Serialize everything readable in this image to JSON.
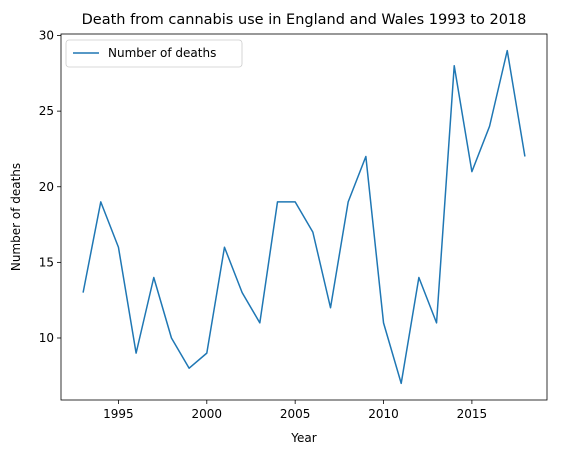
{
  "chart_data": {
    "type": "line",
    "title": "Death from cannabis use in England and Wales 1993 to 2018",
    "xlabel": "Year",
    "ylabel": "Number of deaths",
    "x": [
      1993,
      1994,
      1995,
      1996,
      1997,
      1998,
      1999,
      2000,
      2001,
      2002,
      2003,
      2004,
      2005,
      2006,
      2007,
      2008,
      2009,
      2010,
      2011,
      2012,
      2013,
      2014,
      2015,
      2016,
      2017,
      2018
    ],
    "series": [
      {
        "name": "Number of deaths",
        "color": "#1f77b4",
        "values": [
          13,
          19,
          16,
          9,
          14,
          10,
          8,
          9,
          16,
          13,
          11,
          19,
          19,
          17,
          12,
          19,
          22,
          11,
          7,
          14,
          11,
          28,
          21,
          24,
          29,
          22
        ]
      }
    ],
    "xlim": [
      1991.75,
      2019.25
    ],
    "ylim": [
      5.9,
      30.1
    ],
    "xticks": [
      1995,
      2000,
      2005,
      2010,
      2015
    ],
    "xtick_labels": [
      "1995",
      "2000",
      "2005",
      "2010",
      "2015"
    ],
    "yticks": [
      10,
      15,
      20,
      25,
      30
    ],
    "ytick_labels": [
      "10",
      "15",
      "20",
      "25",
      "30"
    ],
    "grid": false,
    "legend_position": "top-left"
  }
}
